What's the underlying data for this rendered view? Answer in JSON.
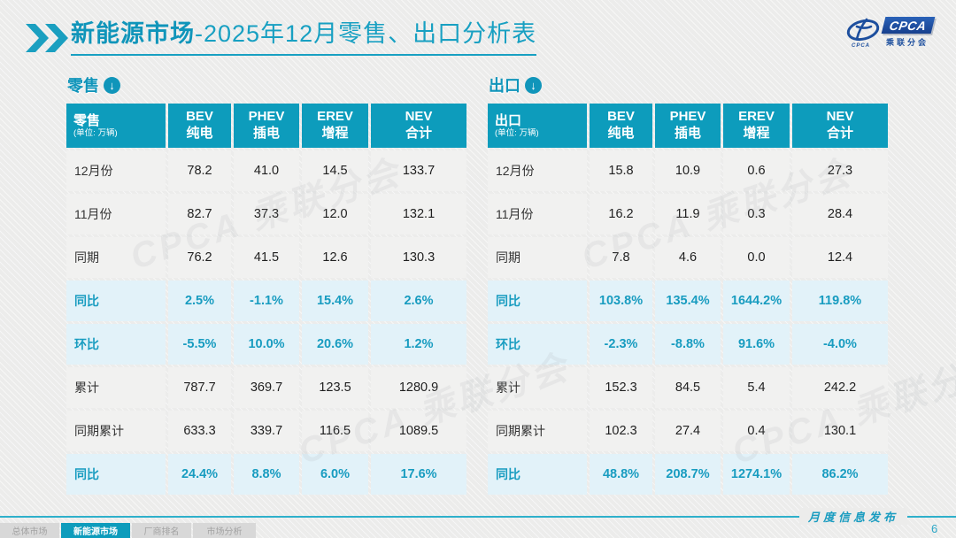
{
  "header": {
    "title_primary": "新能源市场",
    "title_secondary": "-2025年12月零售、出口分析表",
    "logo": {
      "brand": "CPCA",
      "brand_sub": "乘联分会",
      "swoosh_caption": "CPCA"
    }
  },
  "watermark": "CPCA 乘联分会",
  "retail": {
    "section_label": "零售",
    "unit_title": "零售",
    "unit_note": "(单位: 万辆)",
    "columns": [
      {
        "en": "BEV",
        "zh": "纯电"
      },
      {
        "en": "PHEV",
        "zh": "插电"
      },
      {
        "en": "EREV",
        "zh": "增程"
      },
      {
        "en": "NEV",
        "zh": "合计"
      }
    ],
    "rows": [
      {
        "label": "12月份",
        "values": [
          "78.2",
          "41.0",
          "14.5",
          "133.7"
        ],
        "highlight": false
      },
      {
        "label": "11月份",
        "values": [
          "82.7",
          "37.3",
          "12.0",
          "132.1"
        ],
        "highlight": false
      },
      {
        "label": "同期",
        "values": [
          "76.2",
          "41.5",
          "12.6",
          "130.3"
        ],
        "highlight": false
      },
      {
        "label": "同比",
        "values": [
          "2.5%",
          "-1.1%",
          "15.4%",
          "2.6%"
        ],
        "highlight": true
      },
      {
        "label": "环比",
        "values": [
          "-5.5%",
          "10.0%",
          "20.6%",
          "1.2%"
        ],
        "highlight": true
      },
      {
        "label": "累计",
        "values": [
          "787.7",
          "369.7",
          "123.5",
          "1280.9"
        ],
        "highlight": false
      },
      {
        "label": "同期累计",
        "values": [
          "633.3",
          "339.7",
          "116.5",
          "1089.5"
        ],
        "highlight": false
      },
      {
        "label": "同比",
        "values": [
          "24.4%",
          "8.8%",
          "6.0%",
          "17.6%"
        ],
        "highlight": true
      }
    ]
  },
  "export": {
    "section_label": "出口",
    "unit_title": "出口",
    "unit_note": "(单位: 万辆)",
    "columns": [
      {
        "en": "BEV",
        "zh": "纯电"
      },
      {
        "en": "PHEV",
        "zh": "插电"
      },
      {
        "en": "EREV",
        "zh": "增程"
      },
      {
        "en": "NEV",
        "zh": "合计"
      }
    ],
    "rows": [
      {
        "label": "12月份",
        "values": [
          "15.8",
          "10.9",
          "0.6",
          "27.3"
        ],
        "highlight": false
      },
      {
        "label": "11月份",
        "values": [
          "16.2",
          "11.9",
          "0.3",
          "28.4"
        ],
        "highlight": false
      },
      {
        "label": "同期",
        "values": [
          "7.8",
          "4.6",
          "0.0",
          "12.4"
        ],
        "highlight": false
      },
      {
        "label": "同比",
        "values": [
          "103.8%",
          "135.4%",
          "1644.2%",
          "119.8%"
        ],
        "highlight": true
      },
      {
        "label": "环比",
        "values": [
          "-2.3%",
          "-8.8%",
          "91.6%",
          "-4.0%"
        ],
        "highlight": true
      },
      {
        "label": "累计",
        "values": [
          "152.3",
          "84.5",
          "5.4",
          "242.2"
        ],
        "highlight": false
      },
      {
        "label": "同期累计",
        "values": [
          "102.3",
          "27.4",
          "0.4",
          "130.1"
        ],
        "highlight": false
      },
      {
        "label": "同比",
        "values": [
          "48.8%",
          "208.7%",
          "1274.1%",
          "86.2%"
        ],
        "highlight": true
      }
    ]
  },
  "footer": {
    "publication_label": "月度信息发布",
    "page_number": "6",
    "tabs": [
      {
        "label": "总体市场",
        "active": false
      },
      {
        "label": "新能源市场",
        "active": true
      },
      {
        "label": "厂商排名",
        "active": false
      },
      {
        "label": "市场分析",
        "active": false
      }
    ]
  },
  "colors": {
    "accent_teal": "#0d9cbc",
    "title_teal": "#18a0c2",
    "highlight_row_bg": "#e2f2f9",
    "logo_blue": "#1d4f9e",
    "page_bg": "#ececeb"
  }
}
